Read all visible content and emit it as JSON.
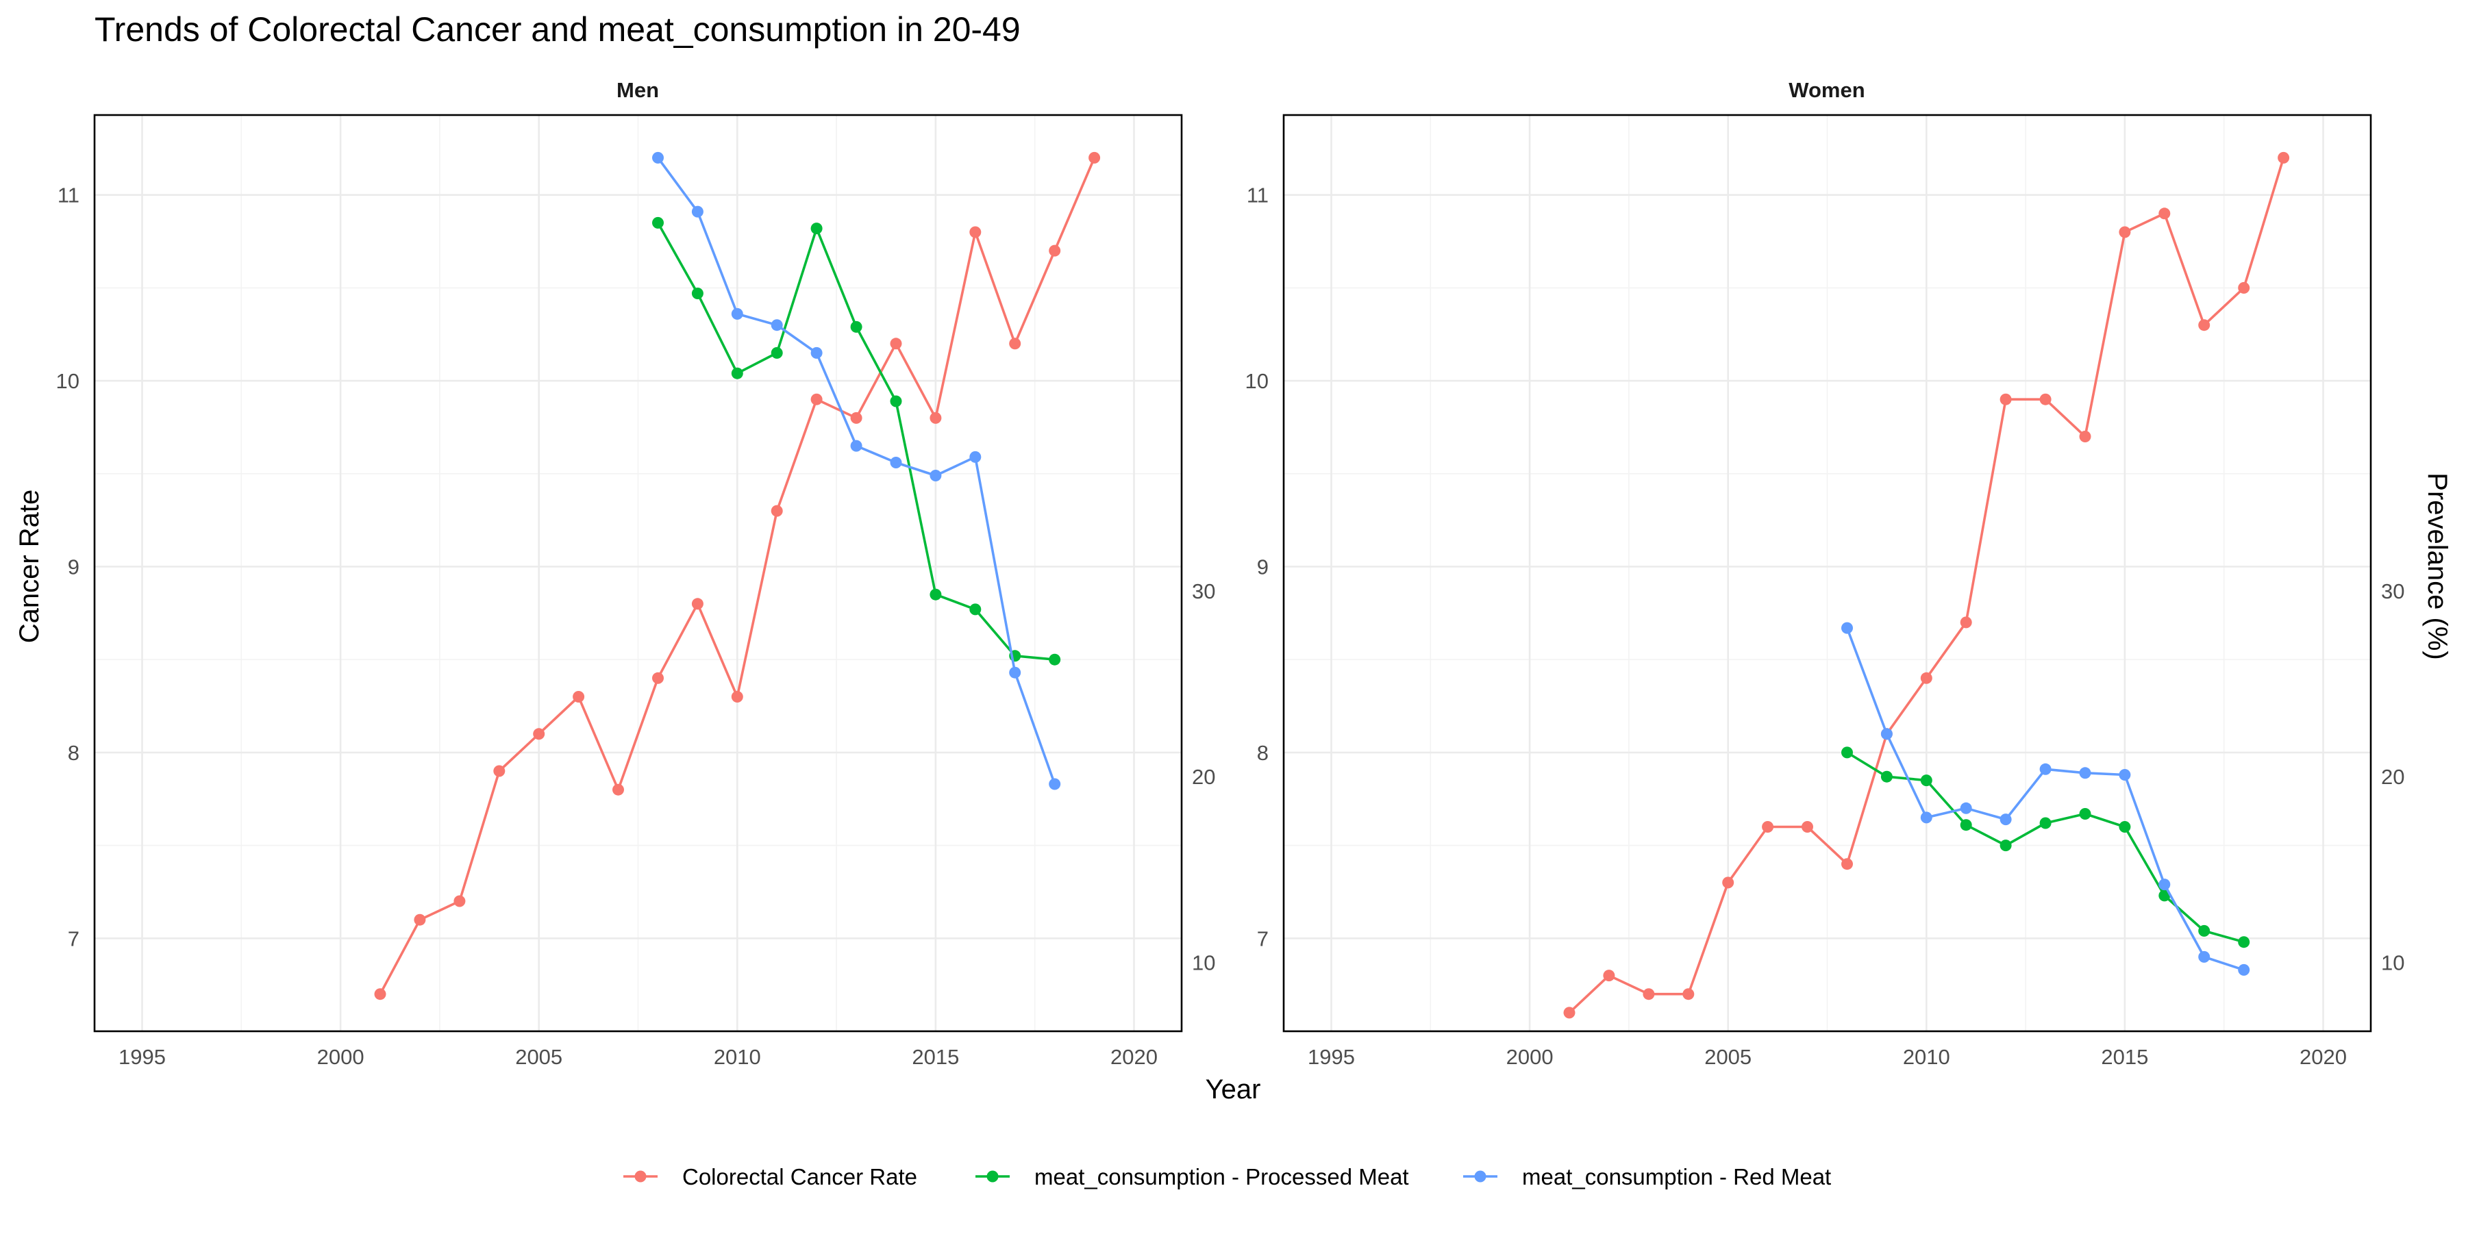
{
  "title": "Trends of Colorectal Cancer and meat_consumption in 20-49",
  "axes": {
    "x_label": "Year",
    "y_left_label": "Cancer Rate",
    "y_right_label": "Prevelance (%)",
    "x_ticks": [
      "1995",
      "2000",
      "2005",
      "2010",
      "2015",
      "2020"
    ],
    "y_left_ticks": [
      "7",
      "8",
      "9",
      "10",
      "11"
    ],
    "y_right_ticks": [
      "10",
      "20",
      "30"
    ]
  },
  "legend": {
    "placement": "bottom",
    "items": [
      {
        "label": "Colorectal Cancer Rate",
        "color": "#F8766D"
      },
      {
        "label": "meat_consumption - Processed Meat",
        "color": "#00BA38"
      },
      {
        "label": "meat_consumption - Red Meat",
        "color": "#619CFF"
      }
    ]
  },
  "chart_data": [
    {
      "type": "line",
      "panel": "Men",
      "xlim": [
        1993.8,
        2021.2
      ],
      "ylim": [
        6.5,
        11.43
      ],
      "secondary_axis": "prevalence = (rate - 5.87) * 10.0",
      "grid": true,
      "series": [
        {
          "name": "Colorectal Cancer Rate",
          "axis": "left",
          "color": "#F8766D",
          "x": [
            2001,
            2002,
            2003,
            2004,
            2005,
            2006,
            2007,
            2008,
            2009,
            2010,
            2011,
            2012,
            2013,
            2014,
            2015,
            2016,
            2017,
            2018,
            2019
          ],
          "y": [
            6.7,
            7.1,
            7.2,
            7.9,
            8.1,
            8.3,
            7.8,
            8.4,
            8.8,
            8.3,
            9.3,
            9.9,
            9.8,
            10.2,
            9.8,
            10.8,
            10.2,
            10.7,
            11.2
          ]
        },
        {
          "name": "meat_consumption - Processed Meat",
          "axis": "right",
          "color": "#00BA38",
          "x": [
            2008,
            2009,
            2010,
            2011,
            2012,
            2013,
            2014,
            2015,
            2016,
            2017,
            2018
          ],
          "y": [
            49.8,
            46.0,
            41.7,
            42.8,
            49.5,
            44.2,
            40.2,
            29.8,
            29.0,
            26.5,
            26.3
          ]
        },
        {
          "name": "meat_consumption - Red Meat",
          "axis": "right",
          "color": "#619CFF",
          "x": [
            2008,
            2009,
            2010,
            2011,
            2012,
            2013,
            2014,
            2015,
            2016,
            2017,
            2018
          ],
          "y": [
            53.3,
            50.4,
            44.9,
            44.3,
            42.8,
            37.8,
            36.9,
            36.2,
            37.2,
            25.6,
            19.6
          ]
        }
      ]
    },
    {
      "type": "line",
      "panel": "Women",
      "xlim": [
        1993.8,
        2021.2
      ],
      "ylim": [
        6.5,
        11.43
      ],
      "secondary_axis": "prevalence = (rate - 5.87) * 10.0",
      "grid": true,
      "series": [
        {
          "name": "Colorectal Cancer Rate",
          "axis": "left",
          "color": "#F8766D",
          "x": [
            2001,
            2002,
            2003,
            2004,
            2005,
            2006,
            2007,
            2008,
            2009,
            2010,
            2011,
            2012,
            2013,
            2014,
            2015,
            2016,
            2017,
            2018,
            2019
          ],
          "y": [
            6.6,
            6.8,
            6.7,
            6.7,
            7.3,
            7.6,
            7.6,
            7.4,
            8.1,
            8.4,
            8.7,
            9.9,
            9.9,
            9.7,
            10.8,
            10.9,
            10.3,
            10.5,
            11.2
          ]
        },
        {
          "name": "meat_consumption - Processed Meat",
          "axis": "right",
          "color": "#00BA38",
          "x": [
            2008,
            2009,
            2010,
            2011,
            2012,
            2013,
            2014,
            2015,
            2016,
            2017,
            2018
          ],
          "y": [
            21.3,
            20.0,
            19.8,
            17.4,
            16.3,
            17.5,
            18.0,
            17.3,
            13.6,
            11.7,
            11.1
          ]
        },
        {
          "name": "meat_consumption - Red Meat",
          "axis": "right",
          "color": "#619CFF",
          "x": [
            2008,
            2009,
            2010,
            2011,
            2012,
            2013,
            2014,
            2015,
            2016,
            2017,
            2018
          ],
          "y": [
            28.0,
            22.3,
            17.8,
            18.3,
            17.7,
            20.4,
            20.2,
            20.1,
            14.2,
            10.3,
            9.6
          ]
        }
      ]
    }
  ]
}
